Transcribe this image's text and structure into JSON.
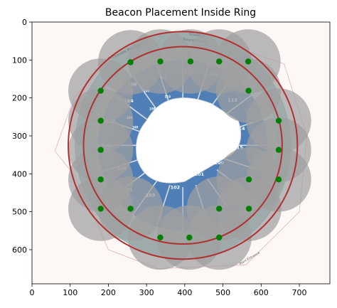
{
  "chart_data": {
    "type": "scatter",
    "title": "Beacon Placement Inside Ring",
    "xlabel": "",
    "ylabel": "",
    "xlim": [
      0,
      780
    ],
    "ylim": [
      690,
      0
    ],
    "x_ticks": [
      0,
      100,
      200,
      300,
      400,
      500,
      600,
      700
    ],
    "y_ticks": [
      0,
      100,
      200,
      300,
      400,
      500,
      600
    ],
    "grid": false,
    "colors": {
      "beacon": "#008000",
      "coverage": "#a0a0a0",
      "ring": "#b03030"
    },
    "ring": {
      "cx": 395,
      "cy": 325,
      "outer_r": 300,
      "inner_r": 260
    },
    "coverage_radius": 85,
    "beacons": [
      {
        "x": 258,
        "y": 106
      },
      {
        "x": 336,
        "y": 104
      },
      {
        "x": 415,
        "y": 104
      },
      {
        "x": 490,
        "y": 104
      },
      {
        "x": 566,
        "y": 104
      },
      {
        "x": 180,
        "y": 181
      },
      {
        "x": 567,
        "y": 181
      },
      {
        "x": 180,
        "y": 260
      },
      {
        "x": 646,
        "y": 260
      },
      {
        "x": 180,
        "y": 337
      },
      {
        "x": 646,
        "y": 337
      },
      {
        "x": 180,
        "y": 415
      },
      {
        "x": 568,
        "y": 415
      },
      {
        "x": 646,
        "y": 415
      },
      {
        "x": 180,
        "y": 492
      },
      {
        "x": 258,
        "y": 492
      },
      {
        "x": 490,
        "y": 492
      },
      {
        "x": 568,
        "y": 492
      },
      {
        "x": 336,
        "y": 568
      },
      {
        "x": 412,
        "y": 568
      },
      {
        "x": 490,
        "y": 568
      }
    ],
    "venue_labels": {
      "sponsors": "Corporate Partners",
      "registration_line1": "Student",
      "registration_line2": "Registration",
      "entrance": "Main Entrance"
    },
    "sections": [
      {
        "label": "111",
        "x": 410,
        "y": 135
      },
      {
        "label": "112",
        "x": 478,
        "y": 140
      },
      {
        "label": "113",
        "x": 525,
        "y": 210
      },
      {
        "label": "114",
        "x": 545,
        "y": 285
      },
      {
        "label": "115",
        "x": 540,
        "y": 335
      },
      {
        "label": "100",
        "x": 490,
        "y": 375
      },
      {
        "label": "101",
        "x": 438,
        "y": 405
      },
      {
        "label": "102",
        "x": 375,
        "y": 440
      },
      {
        "label": "103",
        "x": 310,
        "y": 460
      },
      {
        "label": "104",
        "x": 250,
        "y": 445
      },
      {
        "label": "105",
        "x": 235,
        "y": 390
      },
      {
        "label": "106",
        "x": 195,
        "y": 330
      },
      {
        "label": "107",
        "x": 205,
        "y": 265
      },
      {
        "label": "108",
        "x": 270,
        "y": 280
      },
      {
        "label": "109",
        "x": 315,
        "y": 232
      },
      {
        "label": "110",
        "x": 355,
        "y": 200
      },
      {
        "label": "110",
        "x": 345,
        "y": 150
      },
      {
        "label": "109",
        "x": 300,
        "y": 185
      },
      {
        "label": "108",
        "x": 255,
        "y": 255
      },
      {
        "label": "106",
        "x": 262,
        "y": 168
      },
      {
        "label": "104",
        "x": 253,
        "y": 212
      }
    ]
  }
}
